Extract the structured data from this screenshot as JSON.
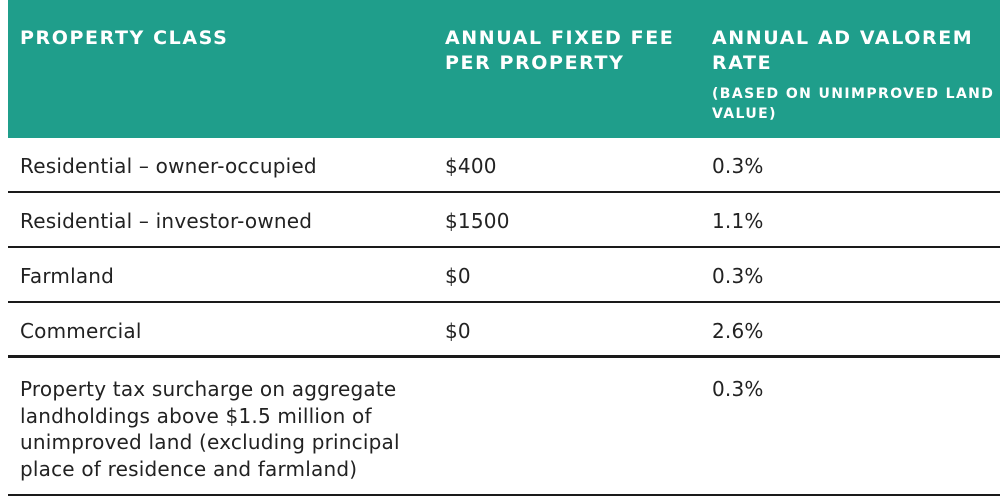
{
  "header": {
    "col1": "PROPERTY CLASS",
    "col2": "ANNUAL FIXED FEE PER PROPERTY",
    "col3": "ANNUAL AD VALOREM RATE",
    "col3_sub": "(BASED ON UNIMPROVED LAND VALUE)"
  },
  "rows": [
    {
      "property_class": "Residential – owner-occupied",
      "fixed_fee": "$400",
      "rate": "0.3%"
    },
    {
      "property_class": "Residential – investor-owned",
      "fixed_fee": "$1500",
      "rate": "1.1%"
    },
    {
      "property_class": "Farmland",
      "fixed_fee": "$0",
      "rate": "0.3%"
    },
    {
      "property_class": "Commercial",
      "fixed_fee": "$0",
      "rate": "2.6%"
    },
    {
      "property_class": "Property tax surcharge on aggregate landholdings above $1.5 million of unimproved land (excluding principal place of residence and farmland)",
      "fixed_fee": "",
      "rate": "0.3%"
    }
  ],
  "colors": {
    "header_bg": "#1f9e8b",
    "header_text": "#ffffff",
    "body_text": "#222222",
    "rule": "#1a1a1a"
  }
}
